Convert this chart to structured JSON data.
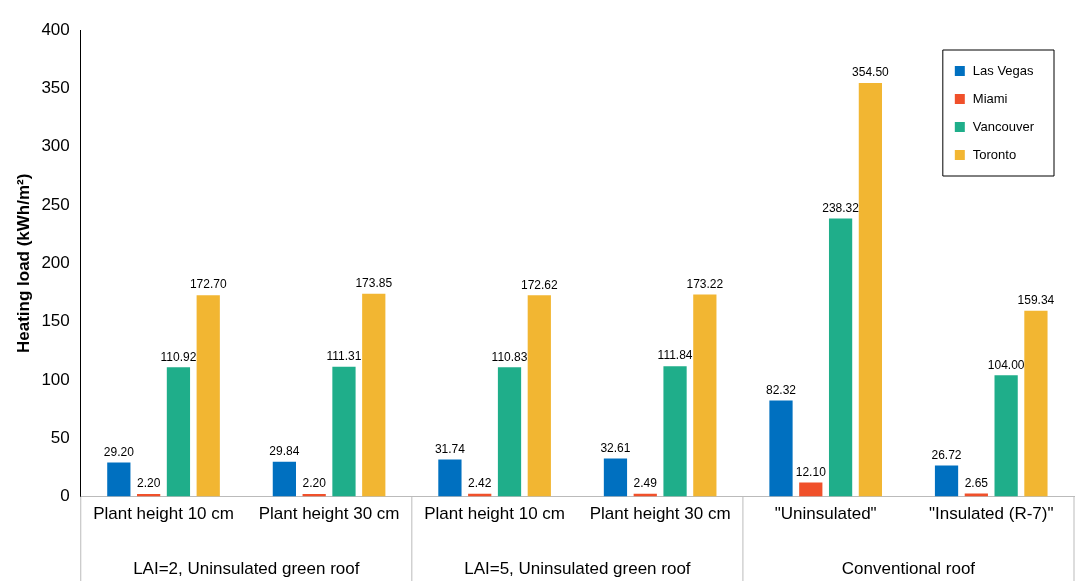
{
  "chart_data": {
    "type": "bar",
    "ylabel": "Heating load (kWh/m²)",
    "categories": [
      "Plant height 10 cm",
      "Plant height 30 cm",
      "Plant height 10 cm",
      "Plant height 30 cm",
      "\"Uninsulated\"",
      "\"Insulated (R-7)\""
    ],
    "annotations": [
      "LAI=2, Uninsulated green roof",
      "LAI=5, Uninsulated green roof",
      "Conventional roof"
    ],
    "series": [
      {
        "name": "Las Vegas",
        "color": "#0070c0",
        "values": [
          29.2,
          29.84,
          31.74,
          32.61,
          82.32,
          26.72
        ],
        "value_labels": [
          "29.20",
          "29.84",
          "31.74",
          "32.61",
          "82.32",
          "26.72"
        ]
      },
      {
        "name": "Miami",
        "color": "#f0502a",
        "values": [
          2.2,
          2.2,
          2.42,
          2.49,
          12.1,
          2.65
        ],
        "value_labels": [
          "2.20",
          "2.20",
          "2.42",
          "2.49",
          "12.10",
          "2.65"
        ]
      },
      {
        "name": "Vancouver",
        "color": "#1fae8a",
        "values": [
          110.92,
          111.31,
          110.83,
          111.84,
          238.32,
          104.0
        ],
        "value_labels": [
          "110.92",
          "111.31",
          "110.83",
          "111.84",
          "238.32",
          "104.00"
        ]
      },
      {
        "name": "Toronto",
        "color": "#f2b632",
        "values": [
          172.7,
          173.85,
          172.62,
          173.22,
          354.5,
          159.34
        ],
        "value_labels": [
          "172.70",
          "173.85",
          "172.62",
          "173.22",
          "354.50",
          "159.34"
        ]
      }
    ],
    "ylim": [
      0,
      400
    ],
    "yticks": [
      0,
      50,
      100,
      150,
      200,
      250,
      300,
      350,
      400
    ],
    "grid": false,
    "legend": "top right"
  }
}
